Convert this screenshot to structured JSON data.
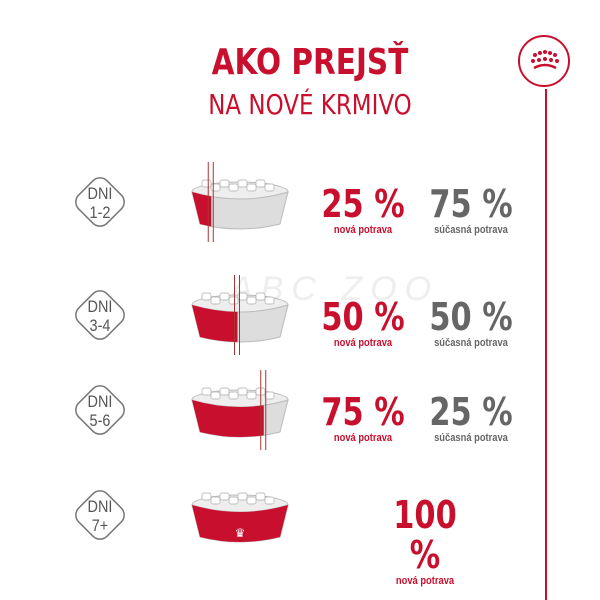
{
  "title": {
    "line1": "AKO PREJSŤ",
    "line2": "NA NOVÉ KRMIVO"
  },
  "watermark": "ABC ZOO",
  "brand_color": "#c8102e",
  "logo_icon": "crown-icon",
  "steps": [
    {
      "day_label": "DNI",
      "days": "1-2",
      "new_pct": "25 %",
      "new_label": "nová potrava",
      "current_pct": "75 %",
      "current_label": "súčasná potrava",
      "new_fraction": 0.25
    },
    {
      "day_label": "DNI",
      "days": "3-4",
      "new_pct": "50 %",
      "new_label": "nová potrava",
      "current_pct": "50 %",
      "current_label": "súčasná potrava",
      "new_fraction": 0.5
    },
    {
      "day_label": "DNI",
      "days": "5-6",
      "new_pct": "75 %",
      "new_label": "nová potrava",
      "current_pct": "25 %",
      "current_label": "súčasná potrava",
      "new_fraction": 0.75
    },
    {
      "day_label": "DNI",
      "days": "7+",
      "new_pct": "100 %",
      "new_label": "nová potrava",
      "new_fraction": 1
    }
  ]
}
